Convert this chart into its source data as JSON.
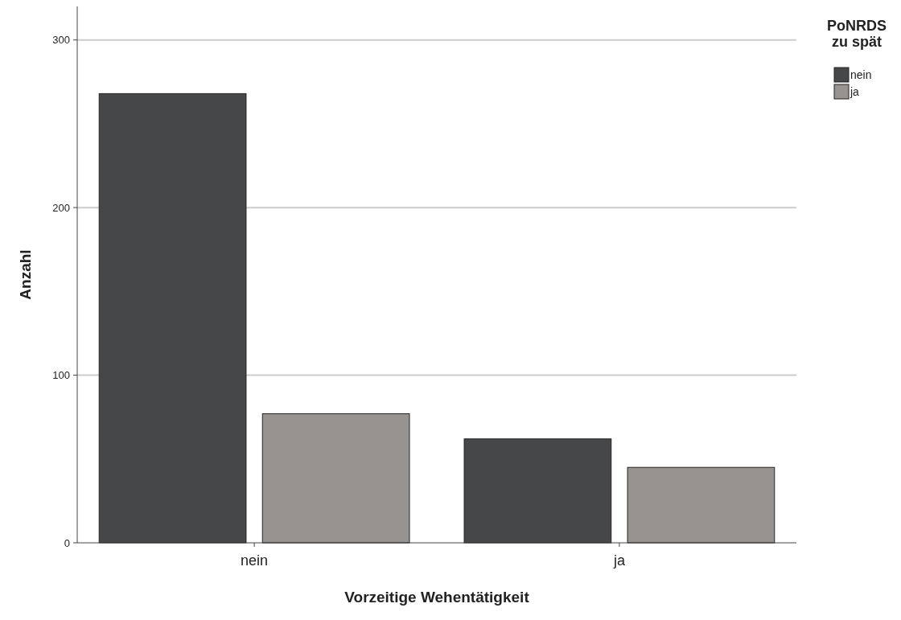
{
  "chart_data": {
    "type": "bar",
    "xlabel": "Vorzeitige Wehentätigkeit",
    "ylabel": "Anzahl",
    "legend_title": "PoNRDS zu spät",
    "categories": [
      "nein",
      "ja"
    ],
    "series": [
      {
        "name": "nein",
        "color": "#464749",
        "values": [
          268,
          62
        ]
      },
      {
        "name": "ja",
        "color": "#979391",
        "values": [
          77,
          45
        ]
      }
    ],
    "ylim": [
      0,
      320
    ],
    "yticks": [
      0,
      100,
      200,
      300
    ],
    "grid": "y",
    "legend": "top right"
  }
}
